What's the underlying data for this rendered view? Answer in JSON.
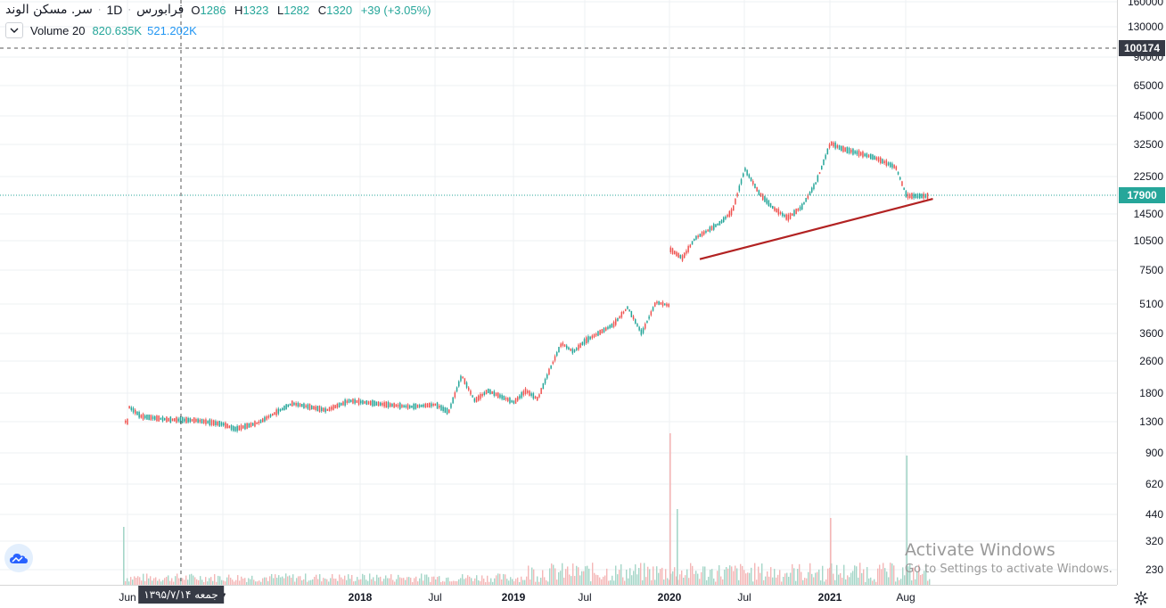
{
  "legend": {
    "symbol": "سر. مسکن الوند",
    "interval": "1D",
    "exchange": "فرابورس",
    "open_key": "O",
    "open": "1286",
    "high_key": "H",
    "high": "1323",
    "low_key": "L",
    "low": "1282",
    "close_key": "C",
    "close": "1320",
    "change": "+39 (+3.05%)"
  },
  "volume_legend": {
    "name": "Volume 20",
    "value1": "820.635K",
    "value2": "521.202K"
  },
  "price_axis": {
    "labels": [
      "160000",
      "130000",
      "90000",
      "65000",
      "45000",
      "32500",
      "22500",
      "14500",
      "10500",
      "7500",
      "5100",
      "3600",
      "2600",
      "1800",
      "1300",
      "900",
      "620",
      "440",
      "320",
      "230"
    ],
    "crosshair_price": "100174",
    "last_price": "17900"
  },
  "time_axis": {
    "labels": [
      {
        "text": "Jun",
        "bold": false
      },
      {
        "text": "7",
        "bold": true
      },
      {
        "text": "2018",
        "bold": true
      },
      {
        "text": "Jul",
        "bold": false
      },
      {
        "text": "2019",
        "bold": true
      },
      {
        "text": "Jul",
        "bold": false
      },
      {
        "text": "2020",
        "bold": true
      },
      {
        "text": "Jul",
        "bold": false
      },
      {
        "text": "2021",
        "bold": true
      },
      {
        "text": "Aug",
        "bold": false
      }
    ],
    "crosshair_date": "جمعه ۱۳۹۵/۷/۱۴"
  },
  "chart_data": {
    "type": "candlestick",
    "scale": "log",
    "symbol": "سر. مسکن الوند",
    "interval": "1D",
    "last_price": 17900,
    "colors": {
      "up": "#26a69a",
      "down": "#ef5350",
      "trendline": "#b22222",
      "last_price_line": "#26a69a",
      "volume_up": "#a5d6c8",
      "volume_down": "#f4b6b6"
    },
    "price_path": [
      [
        "2016-06",
        1300
      ],
      [
        "2016-06",
        1550
      ],
      [
        "2016-07",
        1380
      ],
      [
        "2016-09",
        1330
      ],
      [
        "2016-11",
        1320
      ],
      [
        "2017-01",
        1260
      ],
      [
        "2017-02",
        1190
      ],
      [
        "2017-04",
        1280
      ],
      [
        "2017-07",
        1600
      ],
      [
        "2017-10",
        1480
      ],
      [
        "2017-12",
        1650
      ],
      [
        "2018-03",
        1580
      ],
      [
        "2018-05",
        1540
      ],
      [
        "2018-07",
        1580
      ],
      [
        "2018-08",
        1450
      ],
      [
        "2018-09",
        2200
      ],
      [
        "2018-10",
        1650
      ],
      [
        "2018-11",
        1850
      ],
      [
        "2019-01",
        1620
      ],
      [
        "2019-02",
        1850
      ],
      [
        "2019-03",
        1680
      ],
      [
        "2019-04",
        2350
      ],
      [
        "2019-05",
        3200
      ],
      [
        "2019-06",
        2900
      ],
      [
        "2019-07",
        3300
      ],
      [
        "2019-09",
        4000
      ],
      [
        "2019-10",
        4900
      ],
      [
        "2019-11",
        3600
      ],
      [
        "2019-12",
        5200
      ],
      [
        "2020-01",
        5000
      ],
      [
        "2020-01",
        9500
      ],
      [
        "2020-02",
        8600
      ],
      [
        "2020-03",
        10800
      ],
      [
        "2020-05",
        13000
      ],
      [
        "2020-06",
        15000
      ],
      [
        "2020-07",
        24500
      ],
      [
        "2020-08",
        18500
      ],
      [
        "2020-09",
        15500
      ],
      [
        "2020-10",
        13800
      ],
      [
        "2020-11",
        15800
      ],
      [
        "2020-12",
        21000
      ],
      [
        "2021-01",
        33000
      ],
      [
        "2021-02",
        31000
      ],
      [
        "2021-05",
        28000
      ],
      [
        "2021-07",
        25000
      ],
      [
        "2021-08",
        17900
      ]
    ],
    "trendline": [
      [
        "2020-02",
        8500
      ],
      [
        "2021-08",
        17300
      ]
    ],
    "volume_spikes": [
      "2016-06",
      "2020-01",
      "2020-01",
      "2021-01",
      "2021-08"
    ]
  },
  "watermark": {
    "title": "Activate Windows",
    "subtitle": "Go to Settings to activate Windows."
  }
}
